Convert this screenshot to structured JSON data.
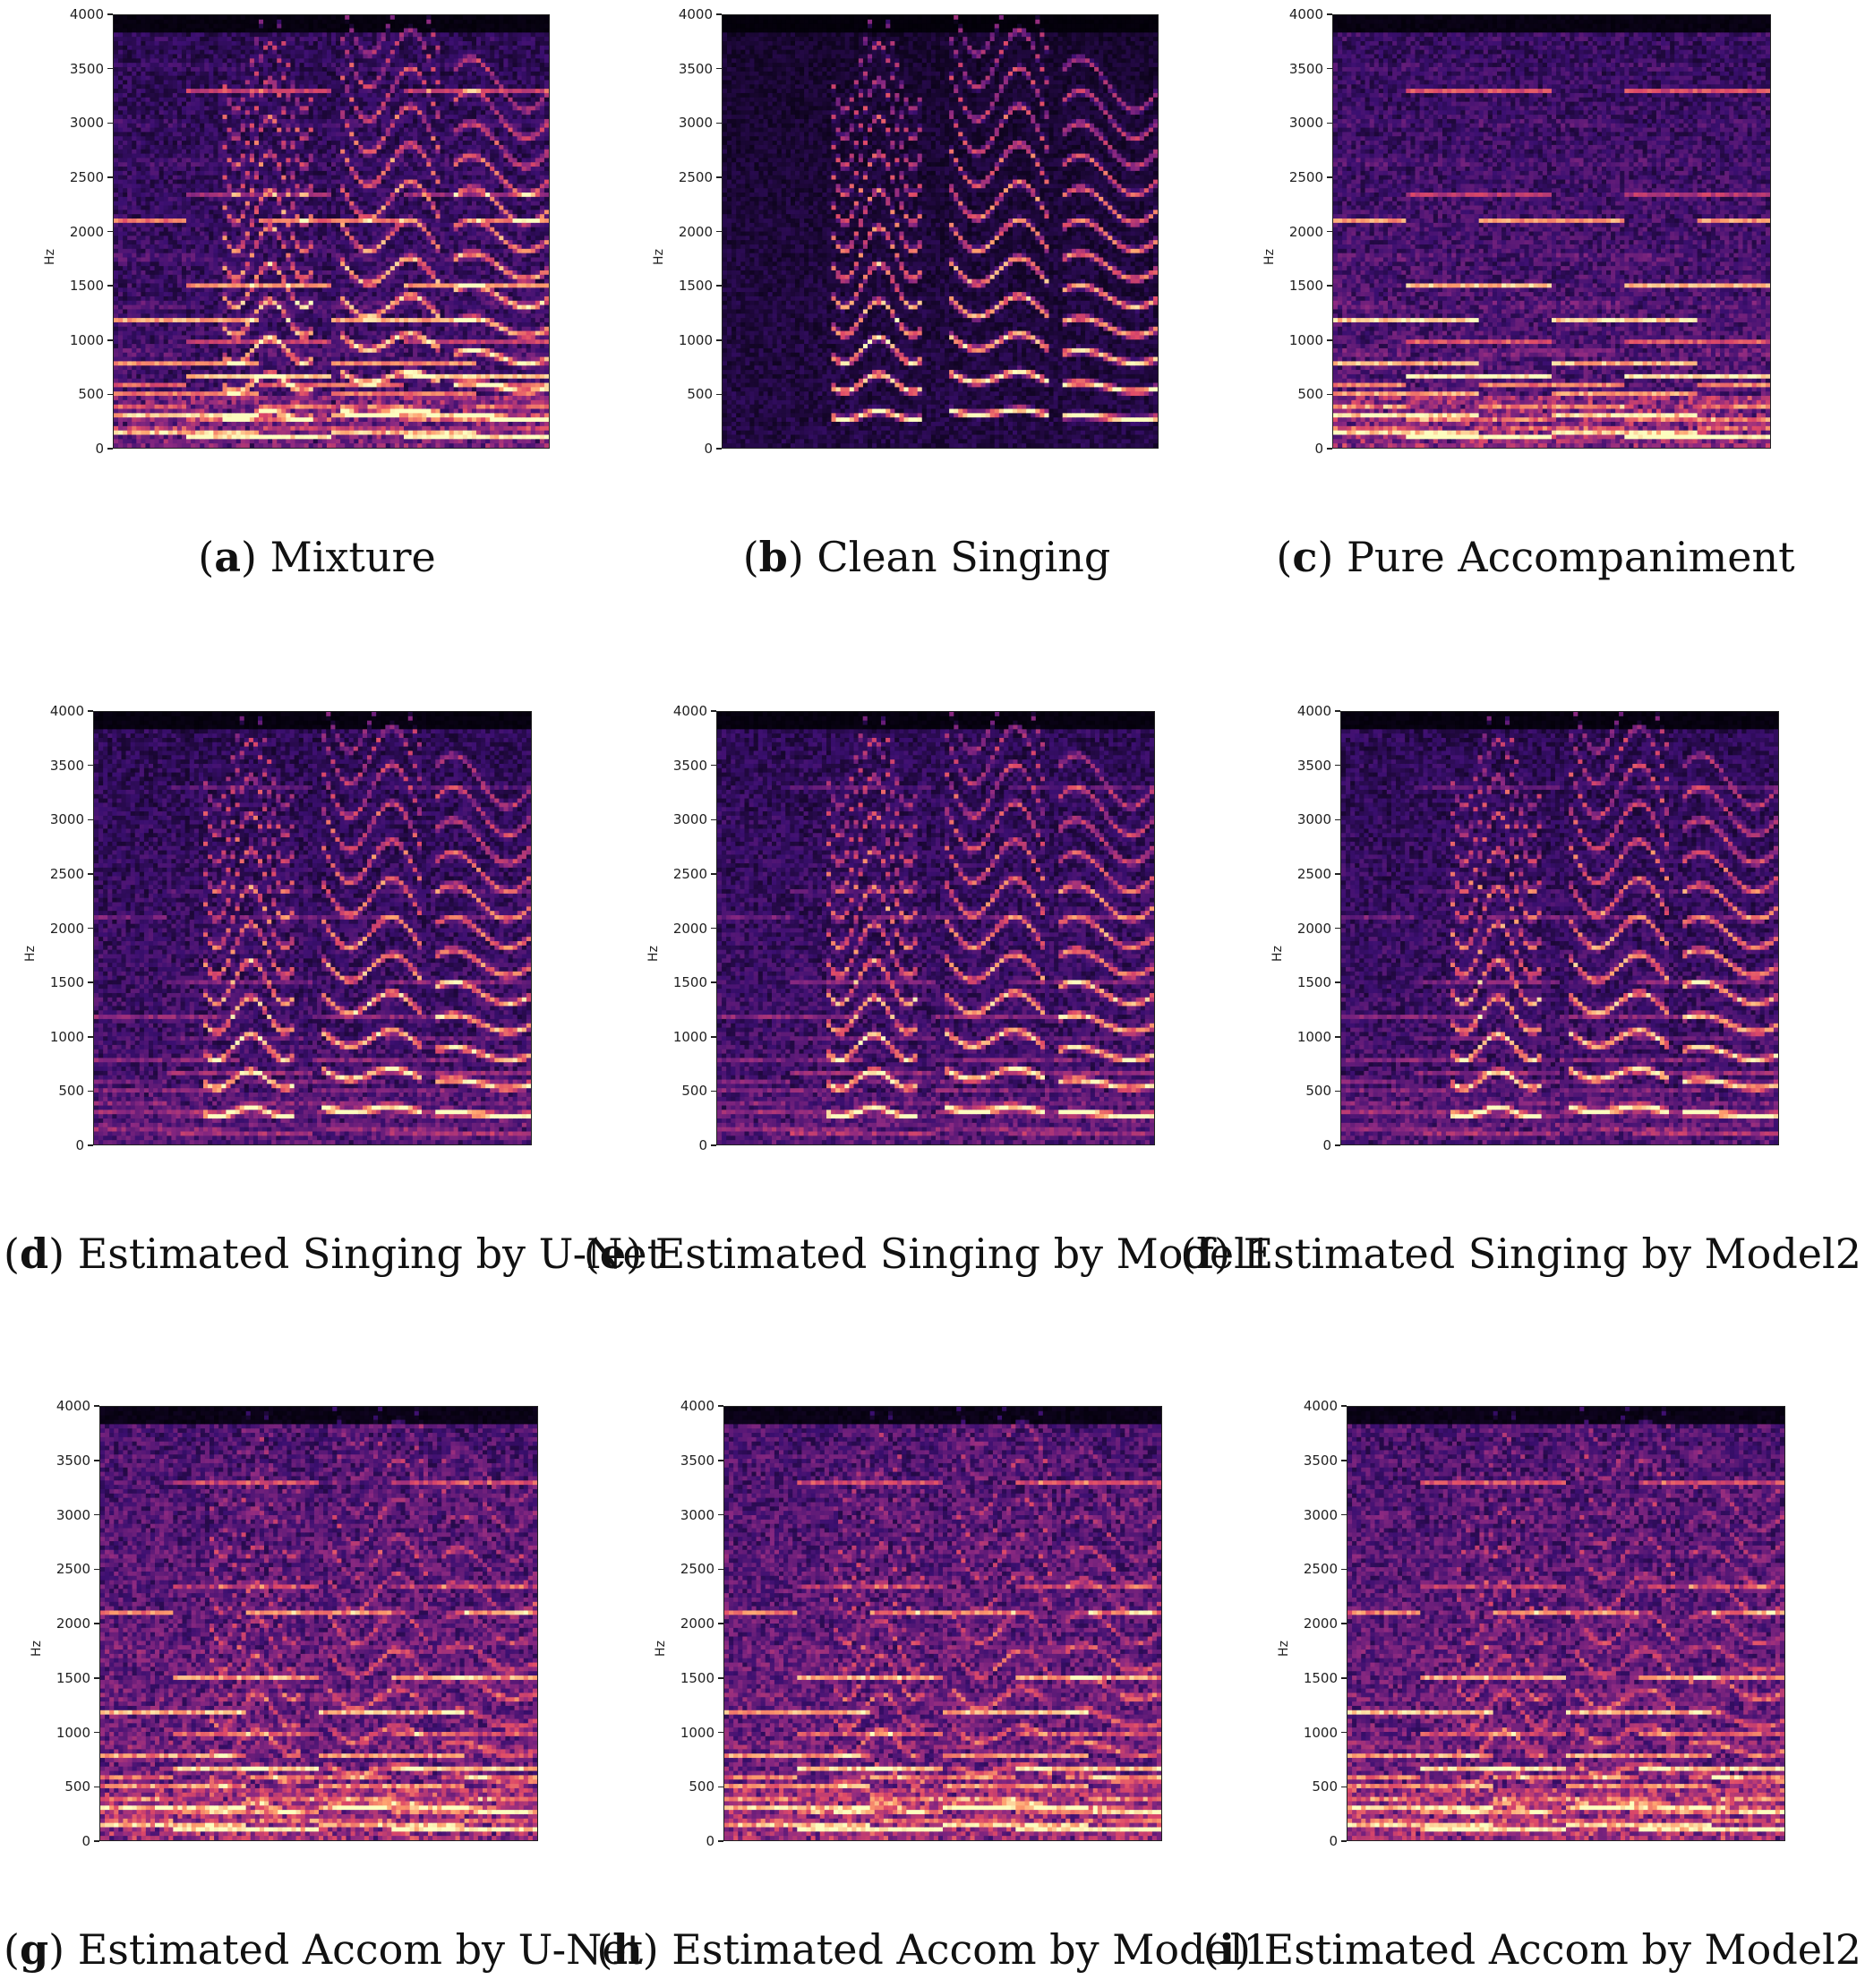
{
  "figure": {
    "chart_data": [
      {
        "type": "heatmap",
        "id": "a",
        "letter": "a",
        "caption": "Mixture",
        "ylabel": "Hz",
        "yticks": [
          0,
          500,
          1000,
          1500,
          2000,
          2500,
          3000,
          3500,
          4000
        ],
        "ylim": [
          0,
          4000
        ],
        "kind": "mixture"
      },
      {
        "type": "heatmap",
        "id": "b",
        "letter": "b",
        "caption": "Clean Singing",
        "ylabel": "Hz",
        "yticks": [
          0,
          500,
          1000,
          1500,
          2000,
          2500,
          3000,
          3500,
          4000
        ],
        "ylim": [
          0,
          4000
        ],
        "kind": "vocal"
      },
      {
        "type": "heatmap",
        "id": "c",
        "letter": "c",
        "caption": "Pure Accompaniment",
        "ylabel": "Hz",
        "yticks": [
          0,
          500,
          1000,
          1500,
          2000,
          2500,
          3000,
          3500,
          4000
        ],
        "ylim": [
          0,
          4000
        ],
        "kind": "accomp"
      },
      {
        "type": "heatmap",
        "id": "d",
        "letter": "d",
        "caption": "Estimated Singing by U-Net",
        "ylabel": "Hz",
        "yticks": [
          0,
          500,
          1000,
          1500,
          2000,
          2500,
          3000,
          3500,
          4000
        ],
        "ylim": [
          0,
          4000
        ],
        "kind": "estvocal"
      },
      {
        "type": "heatmap",
        "id": "e",
        "letter": "e",
        "caption": "Estimated Singing by Model1",
        "ylabel": "Hz",
        "yticks": [
          0,
          500,
          1000,
          1500,
          2000,
          2500,
          3000,
          3500,
          4000
        ],
        "ylim": [
          0,
          4000
        ],
        "kind": "estvocal"
      },
      {
        "type": "heatmap",
        "id": "f",
        "letter": "f",
        "caption": "Estimated Singing by Model2",
        "ylabel": "Hz",
        "yticks": [
          0,
          500,
          1000,
          1500,
          2000,
          2500,
          3000,
          3500,
          4000
        ],
        "ylim": [
          0,
          4000
        ],
        "kind": "estvocal"
      },
      {
        "type": "heatmap",
        "id": "g",
        "letter": "g",
        "caption": "Estimated Accom by U-Net",
        "ylabel": "Hz",
        "yticks": [
          0,
          500,
          1000,
          1500,
          2000,
          2500,
          3000,
          3500,
          4000
        ],
        "ylim": [
          0,
          4000
        ],
        "kind": "estaccomp"
      },
      {
        "type": "heatmap",
        "id": "h",
        "letter": "h",
        "caption": "Estimated Accom by Model1",
        "ylabel": "Hz",
        "yticks": [
          0,
          500,
          1000,
          1500,
          2000,
          2500,
          3000,
          3500,
          4000
        ],
        "ylim": [
          0,
          4000
        ],
        "kind": "estaccomp"
      },
      {
        "type": "heatmap",
        "id": "i",
        "letter": "i",
        "caption": "Estimated Accom by Model2",
        "ylabel": "Hz",
        "yticks": [
          0,
          500,
          1000,
          1500,
          2000,
          2500,
          3000,
          3500,
          4000
        ],
        "ylim": [
          0,
          4000
        ],
        "kind": "estaccomp"
      }
    ],
    "colormap": [
      "#000004",
      "#3b0f70",
      "#8c2981",
      "#de4968",
      "#fe9f6d",
      "#fcfdbf"
    ]
  }
}
